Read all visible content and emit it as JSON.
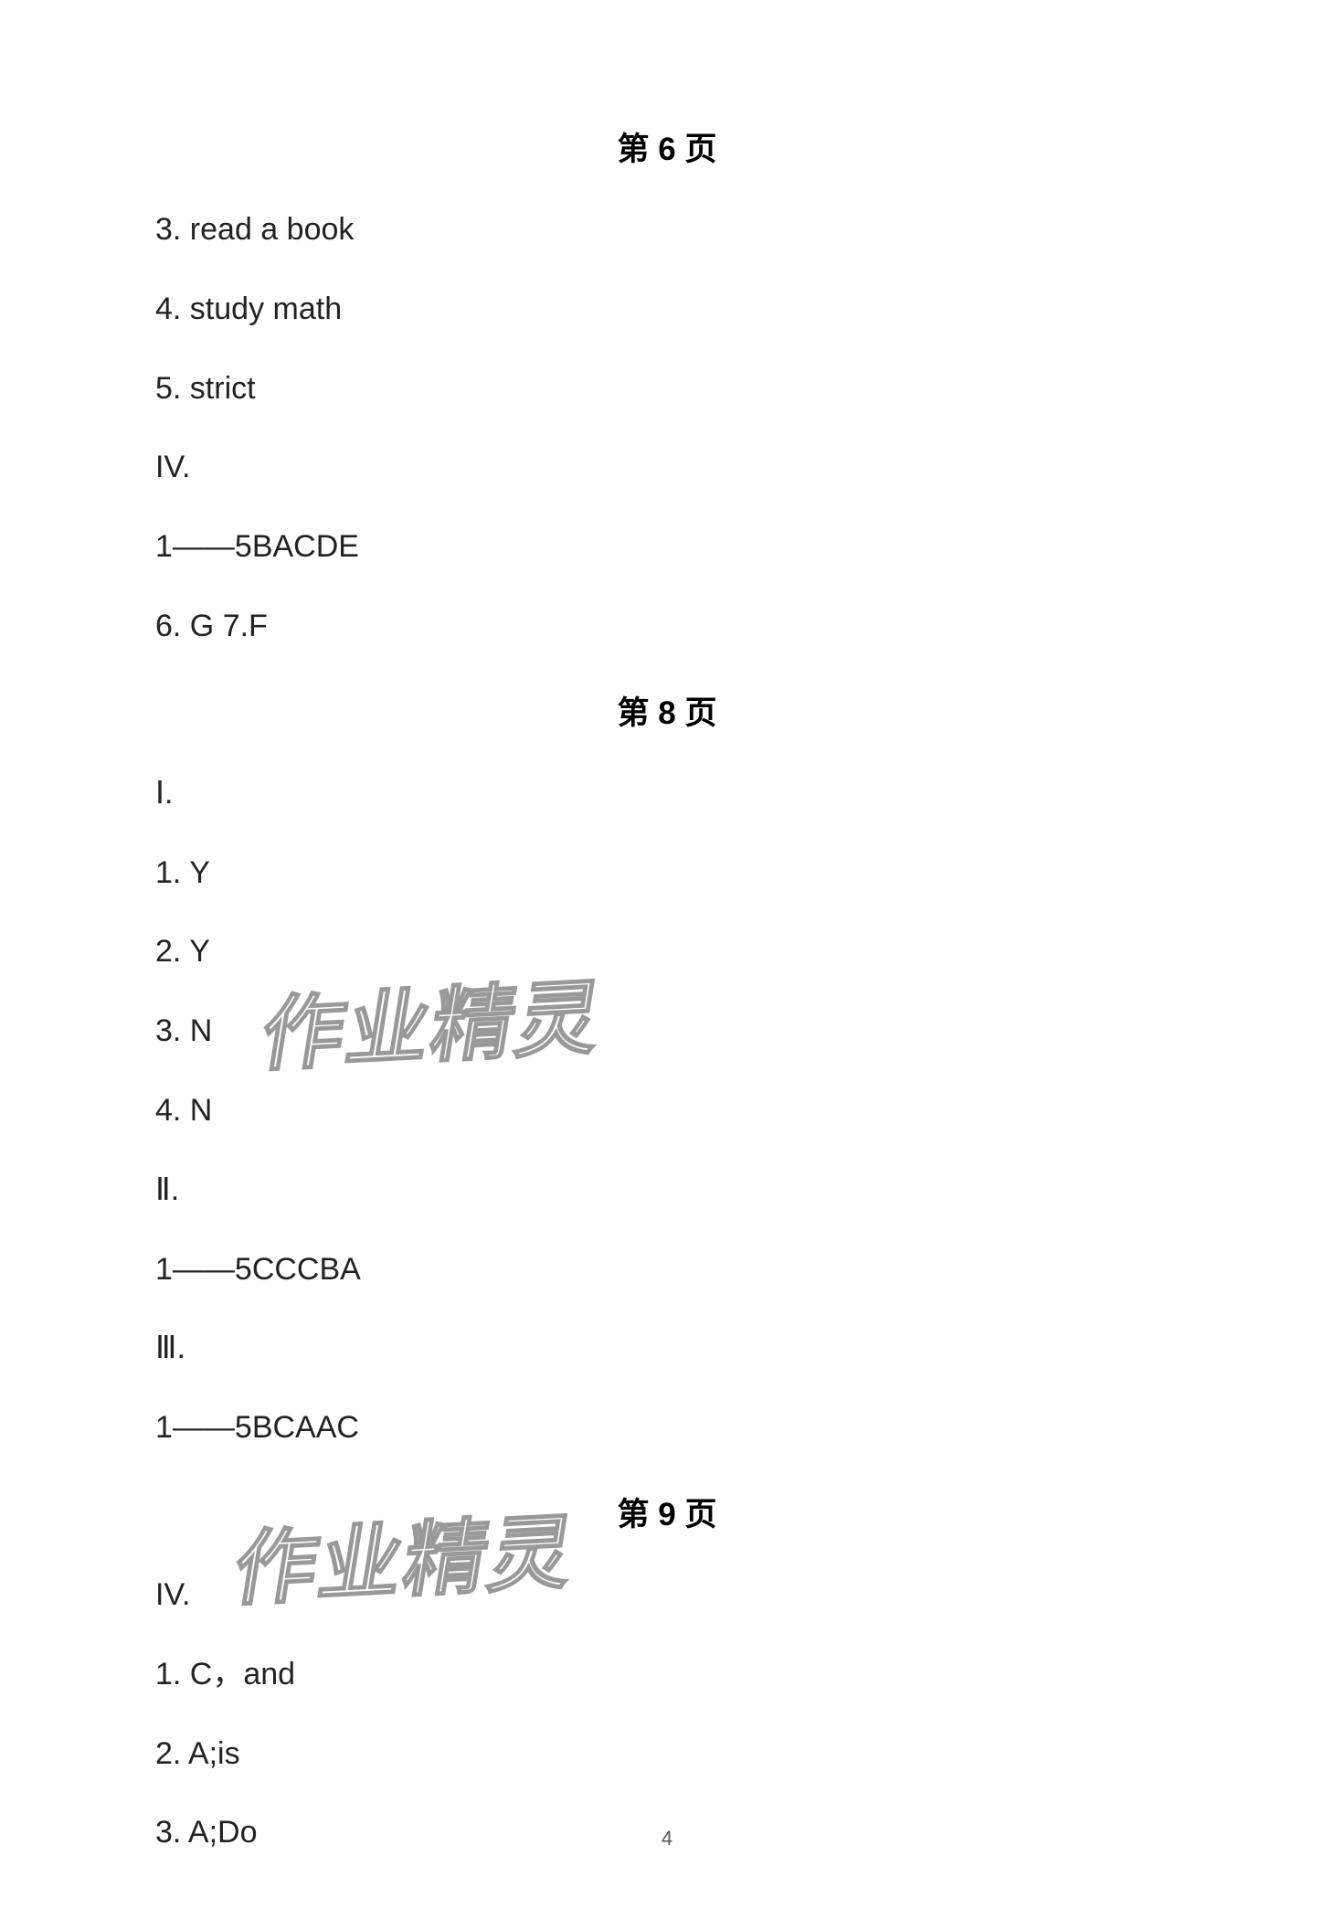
{
  "sections": {
    "page6": {
      "heading": "第 6 页",
      "lines": [
        "3.  read a book",
        "4.  study math",
        "5.  strict",
        "IV.",
        "1——5BACDE",
        "6.  G    7.F"
      ]
    },
    "page8": {
      "heading": "第 8 页",
      "lines": [
        "Ⅰ.",
        "1.  Y",
        "2.  Y",
        "3.  N",
        "4.  N",
        "Ⅱ.",
        "1——5CCCBA",
        "Ⅲ.",
        "1——5BCAAC"
      ]
    },
    "page9": {
      "heading": "第 9 页",
      "lines": [
        "IV.",
        "1.  C，and",
        "2.  A;is",
        "3.  A;Do"
      ]
    }
  },
  "page_number": "4",
  "watermark_text": "作业精灵",
  "colors": {
    "background": "#ffffff",
    "text": "#222222",
    "heading": "#000000",
    "page_number": "#555555",
    "watermark_stroke": "#999999"
  },
  "typography": {
    "heading_fontsize": 35,
    "line_fontsize": 34,
    "page_number_fontsize": 22,
    "watermark_fontsize": 90
  }
}
